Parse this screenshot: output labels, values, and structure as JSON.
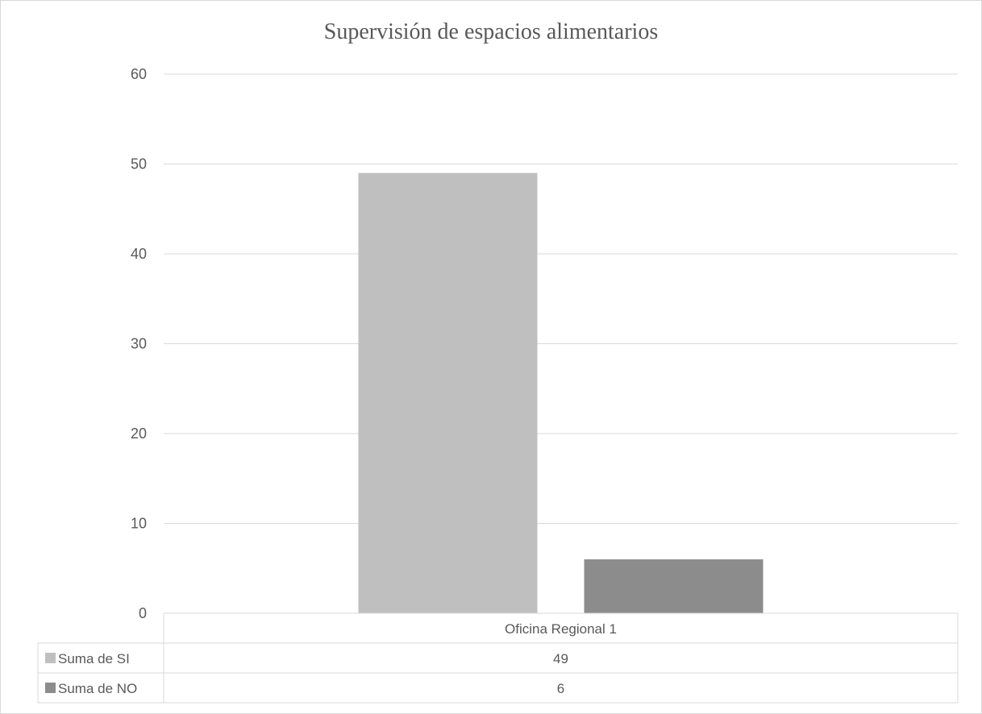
{
  "chart_data": {
    "type": "bar",
    "title": "Supervisión de espacios alimentarios",
    "categories": [
      "Oficina Regional 1"
    ],
    "series": [
      {
        "name": "Suma de SI",
        "values": [
          49
        ],
        "color": "#bfbfbf"
      },
      {
        "name": "Suma de NO",
        "values": [
          6
        ],
        "color": "#8c8c8c"
      }
    ],
    "ylim": [
      0,
      60
    ],
    "yticks": [
      0,
      10,
      20,
      30,
      40,
      50,
      60
    ],
    "grid": true,
    "legend": "data-table-below"
  }
}
